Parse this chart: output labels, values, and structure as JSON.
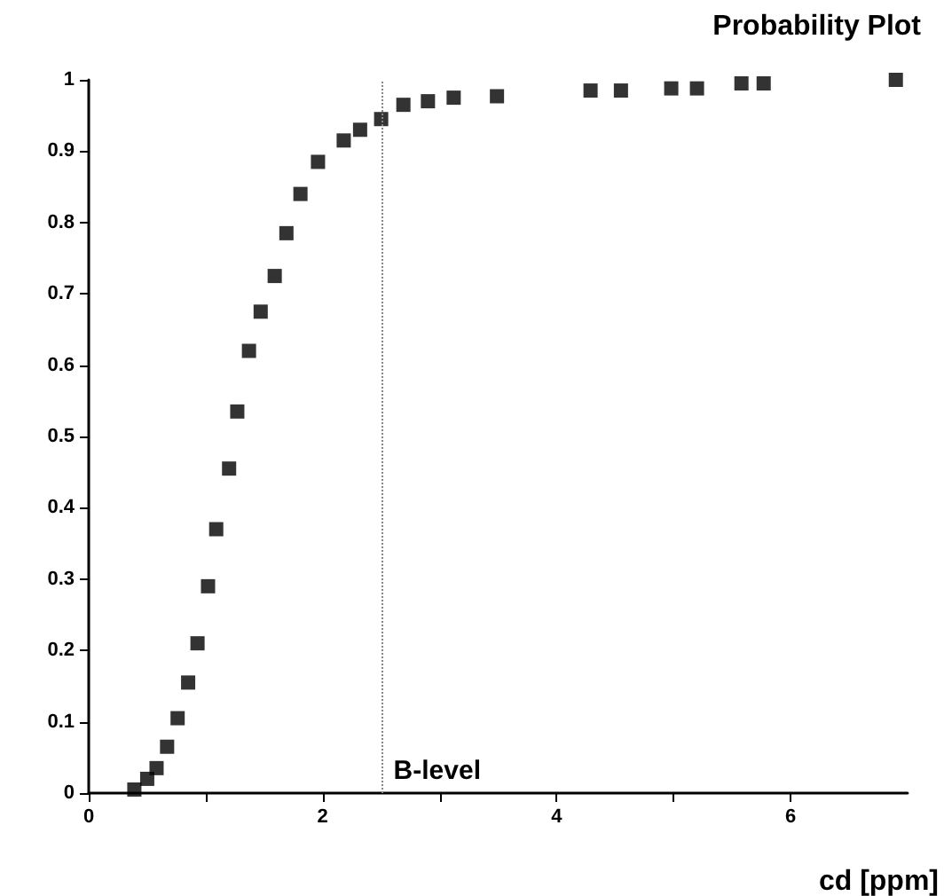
{
  "chart_data": {
    "type": "scatter",
    "title": "Probability Plot",
    "xlabel": "cd [ppm]",
    "x": [
      0.39,
      0.5,
      0.58,
      0.67,
      0.76,
      0.85,
      0.93,
      1.02,
      1.09,
      1.2,
      1.27,
      1.37,
      1.47,
      1.59,
      1.69,
      1.81,
      1.96,
      2.18,
      2.32,
      2.5,
      2.69,
      2.9,
      3.12,
      3.49,
      4.29,
      4.55,
      4.98,
      5.2,
      5.58,
      5.77,
      6.9
    ],
    "values": [
      0.005,
      0.02,
      0.035,
      0.065,
      0.105,
      0.155,
      0.21,
      0.29,
      0.37,
      0.455,
      0.535,
      0.62,
      0.675,
      0.725,
      0.785,
      0.84,
      0.885,
      0.915,
      0.93,
      0.945,
      0.965,
      0.97,
      0.975,
      0.977,
      0.985,
      0.985,
      0.988,
      0.988,
      0.995,
      0.995,
      1
    ],
    "color": "#000000",
    "marker": "square",
    "xlim": [
      0,
      7
    ],
    "xticks": [
      0,
      {
        "value": 1,
        "label": null
      },
      2,
      {
        "value": 3,
        "label": null
      },
      4,
      {
        "value": 5,
        "label": null
      },
      6
    ],
    "ylim": [
      0,
      1
    ],
    "yticks": [
      0,
      0.1,
      0.2,
      0.3,
      0.4,
      0.5,
      0.6,
      0.7,
      0.8,
      0.9,
      1
    ],
    "ref_lines": [
      {
        "axis": "x",
        "value": 2.5,
        "label": "B-level",
        "line_style": "dotted",
        "color": "#888888"
      }
    ],
    "grid": false
  }
}
